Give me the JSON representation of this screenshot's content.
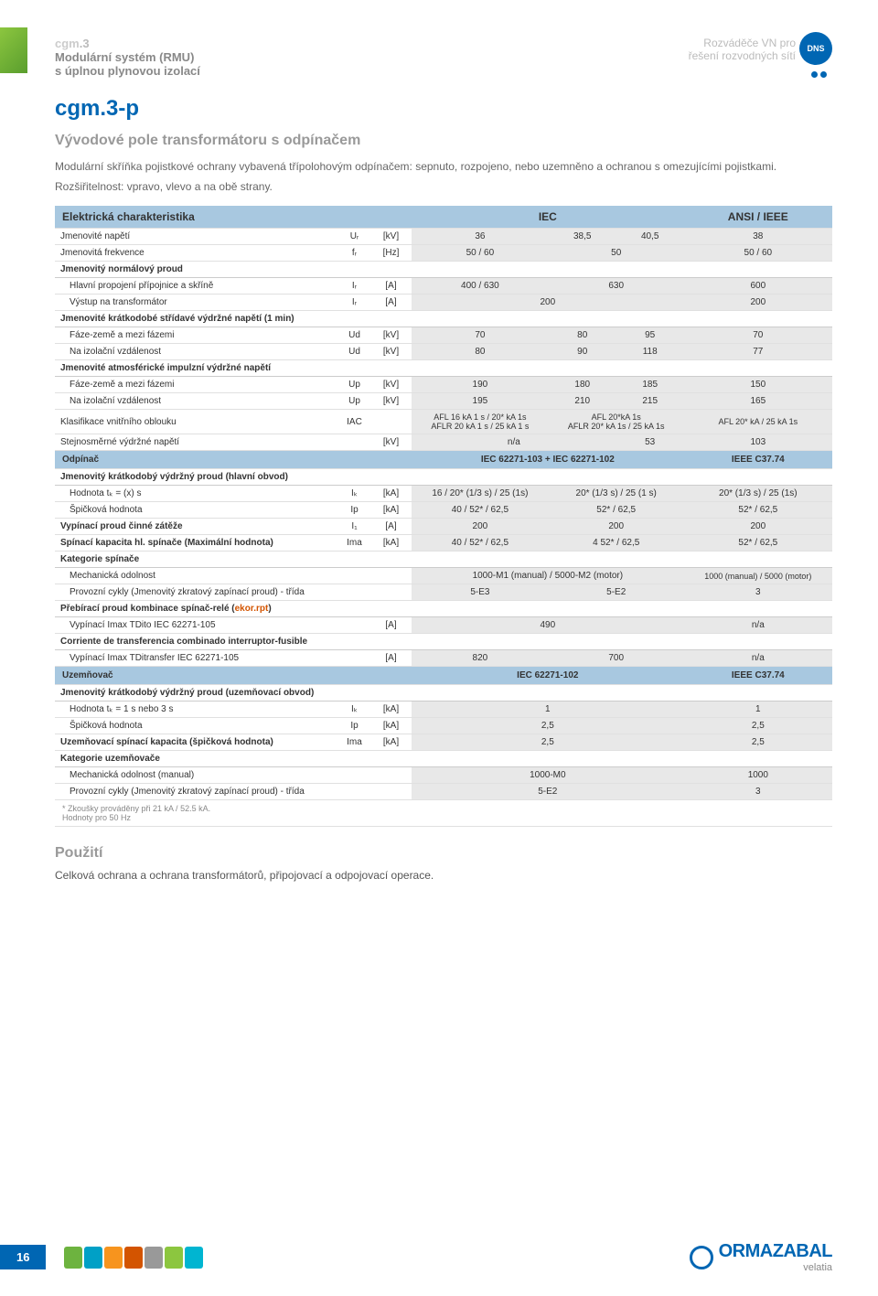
{
  "header": {
    "brand_prefix": "cgm",
    "brand_suffix": ".3",
    "line1": "Modulární systém (RMU)",
    "line2": "s úplnou plynovou izolací",
    "right1": "Rozváděče VN pro",
    "right2": "řešení rozvodných sítí",
    "badge": "DNS"
  },
  "title": "cgm.3-p",
  "subtitle": "Vývodové pole transformátoru s odpínačem",
  "intro": "Modulární skříňka pojistkové ochrany vybavená třípolohovým odpínačem: sepnuto, rozpojeno, nebo uzemněno a ochranou s omezujícími pojistkami.",
  "ext": "Rozšiřitelnost: vpravo, vlevo a na obě strany.",
  "sections": {
    "elchar": {
      "label": "Elektrická charakteristika",
      "iec": "IEC",
      "ansi": "ANSI / IEEE"
    },
    "odpinac": {
      "label": "Odpínač",
      "iec": "IEC 62271-103 + IEC 62271-102",
      "ansi": "IEEE C37.74"
    },
    "uzemnovac": {
      "label": "Uzemňovač",
      "iec": "IEC 62271-102",
      "ansi": "IEEE C37.74"
    }
  },
  "rows": {
    "r1": {
      "l": "Jmenovité napětí",
      "s": "Uᵣ",
      "u": "[kV]",
      "v": [
        "36",
        "38,5",
        "40,5",
        "38"
      ]
    },
    "r2": {
      "l": "Jmenovitá frekvence",
      "s": "fᵣ",
      "u": "[Hz]",
      "v": [
        "50 / 60",
        "50",
        "50 / 60"
      ]
    },
    "g1": {
      "l": "Jmenovitý normálový proud"
    },
    "r3": {
      "l": "Hlavní propojení přípojnice a skříně",
      "s": "Iᵣ",
      "u": "[A]",
      "v": [
        "400 / 630",
        "630",
        "600"
      ]
    },
    "r4": {
      "l": "Výstup na transformátor",
      "s": "Iᵣ",
      "u": "[A]",
      "v": [
        "200",
        "200"
      ]
    },
    "g2": {
      "l": "Jmenovité krátkodobé střídavé výdržné napětí (1 min)"
    },
    "r5": {
      "l": "Fáze-země a mezi fázemi",
      "s": "Ud",
      "u": "[kV]",
      "v": [
        "70",
        "80",
        "95",
        "70"
      ]
    },
    "r6": {
      "l": "Na izolační vzdálenost",
      "s": "Ud",
      "u": "[kV]",
      "v": [
        "80",
        "90",
        "118",
        "77"
      ]
    },
    "g3": {
      "l": "Jmenovité atmosférické impulzní výdržné napětí"
    },
    "r7": {
      "l": "Fáze-země a mezi fázemi",
      "s": "Up",
      "u": "[kV]",
      "v": [
        "190",
        "180",
        "185",
        "150"
      ]
    },
    "r8": {
      "l": "Na izolační vzdálenost",
      "s": "Up",
      "u": "[kV]",
      "v": [
        "195",
        "210",
        "215",
        "165"
      ]
    },
    "r9": {
      "l": "Klasifikace vnitřního oblouku",
      "s": "IAC",
      "u": "",
      "v": [
        "AFL 16 kA 1 s / 20* kA 1s\nAFLR 20 kA 1 s / 25 kA 1 s",
        "AFL 20*kA 1s\nAFLR 20* kA 1s / 25 kA 1s",
        "AFL 20* kA / 25 kA 1s"
      ]
    },
    "r10": {
      "l": "Stejnosměrné výdržné napětí",
      "s": "",
      "u": "[kV]",
      "v": [
        "n/a",
        "53",
        "103"
      ]
    },
    "g4": {
      "l": "Jmenovitý krátkodobý výdržný proud (hlavní obvod)"
    },
    "r11": {
      "l": "Hodnota tₖ = (x) s",
      "s": "Iₖ",
      "u": "[kA]",
      "v": [
        "16 / 20* (1/3 s) / 25 (1s)",
        "20* (1/3 s) / 25 (1 s)",
        "20* (1/3 s) / 25 (1s)"
      ]
    },
    "r12": {
      "l": "Špičková hodnota",
      "s": "Ip",
      "u": "[kA]",
      "v": [
        "40 / 52* / 62,5",
        "52* / 62,5",
        "52* / 62,5"
      ]
    },
    "r13": {
      "l": "Vypínací proud činné zátěže",
      "s": "I₁",
      "u": "[A]",
      "v": [
        "200",
        "200",
        "200"
      ]
    },
    "r14": {
      "l": "Spínací kapacita hl. spínače (Maximální hodnota)",
      "s": "Ima",
      "u": "[kA]",
      "v": [
        "40 / 52* / 62,5",
        "4 52* / 62,5",
        "52* / 62,5"
      ]
    },
    "g5": {
      "l": "Kategorie spínače"
    },
    "r15": {
      "l": "Mechanická odolnost",
      "s": "",
      "u": "",
      "v": [
        "1000-M1 (manual) / 5000-M2 (motor)",
        "1000 (manual) / 5000 (motor)"
      ]
    },
    "r16": {
      "l": "Provozní cykly (Jmenovitý zkratový zapínací proud) - třída",
      "s": "",
      "u": "",
      "v": [
        "5-E3",
        "5-E2",
        "3"
      ]
    },
    "g6": {
      "l": "Přebírací proud kombinace spínač-relé (ekor.rpt)",
      "ekor": "ekor.rpt"
    },
    "r17": {
      "l": "Vypínací Imax TDito IEC 62271-105",
      "s": "",
      "u": "[A]",
      "v": [
        "490",
        "n/a"
      ]
    },
    "g7": {
      "l": "Corriente de transferencia combinado interruptor-fusible"
    },
    "r18": {
      "l": "Vypínací Imax TDitransfer IEC 62271-105",
      "s": "",
      "u": "[A]",
      "v": [
        "820",
        "700",
        "n/a"
      ]
    },
    "g8": {
      "l": "Jmenovitý krátkodobý výdržný proud (uzemňovací obvod)"
    },
    "r19": {
      "l": "Hodnota tₖ = 1 s nebo 3 s",
      "s": "Iₖ",
      "u": "[kA]",
      "v": [
        "1",
        "1"
      ]
    },
    "r20": {
      "l": "Špičková hodnota",
      "s": "Ip",
      "u": "[kA]",
      "v": [
        "2,5",
        "2,5"
      ]
    },
    "r21": {
      "l": "Uzemňovací spínací kapacita (špičková hodnota)",
      "s": "Ima",
      "u": "[kA]",
      "v": [
        "2,5",
        "2,5"
      ]
    },
    "g9": {
      "l": "Kategorie uzemňovače"
    },
    "r22": {
      "l": "Mechanická odolnost (manual)",
      "s": "",
      "u": "",
      "v": [
        "1000-M0",
        "1000"
      ]
    },
    "r23": {
      "l": "Provozní cykly (Jmenovitý zkratový zapínací proud) - třída",
      "s": "",
      "u": "",
      "v": [
        "5-E2",
        "3"
      ]
    }
  },
  "footnote1": "* Zkoušky prováděny při 21 kA / 52.5 kA.",
  "footnote2": "Hodnoty pro 50 Hz",
  "usage_h": "Použití",
  "usage_p": "Celková ochrana a ochrana transformátorů, připojovací a odpojovací operace.",
  "page_num": "16",
  "logo": "ORMAZABAL",
  "logo_sub": "velatia",
  "block_colors": [
    "#6db33f",
    "#00a0c6",
    "#f7941e",
    "#d35400",
    "#999",
    "#8cc63f",
    "#00b5d1"
  ]
}
